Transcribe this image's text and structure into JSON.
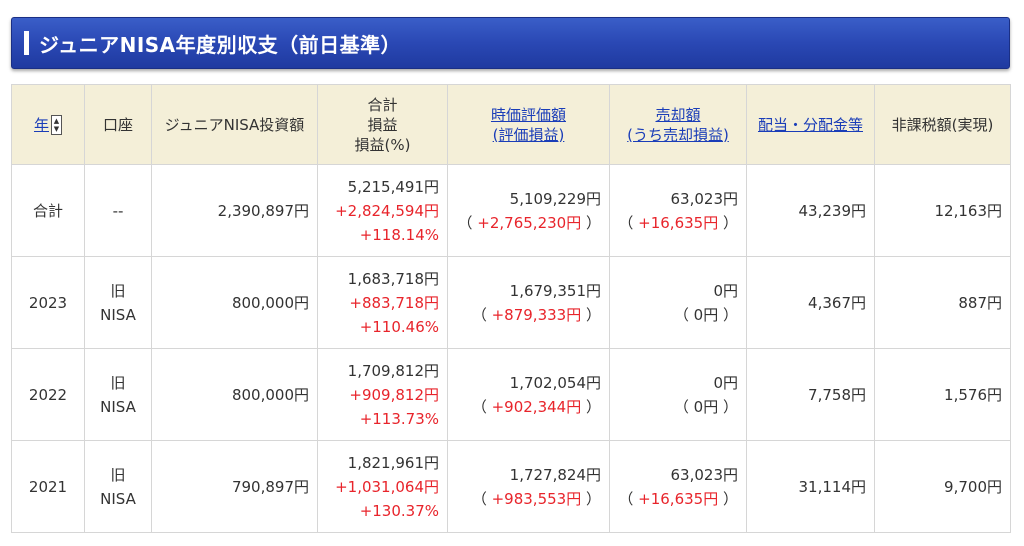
{
  "header": {
    "title": "ジュニアNISA年度別収支（前日基準）"
  },
  "columns": {
    "year": "年",
    "account": "口座",
    "invest": "ジュニアNISA投資額",
    "total_line1": "合計",
    "total_line2": "損益",
    "total_line3": "損益(%)",
    "valuation_line1": "時価評価額",
    "valuation_line2": "(評価損益)",
    "sale_line1": "売却額",
    "sale_line2": "(うち売却損益)",
    "dividend": "配当・分配金等",
    "taxfree": "非課税額(実現)"
  },
  "sort_icon": "up-down-arrows",
  "rows": [
    {
      "year": "合計",
      "account": "--",
      "invest": "2,390,897円",
      "total": "5,215,491円",
      "profit": "+2,824,594円",
      "pct": "+118.14%",
      "valuation": "5,109,229円",
      "eval_profit": "+2,765,230円",
      "sale": "63,023円",
      "sale_profit": "+16,635円",
      "dividend": "43,239円",
      "taxfree": "12,163円"
    },
    {
      "year": "2023",
      "account": "旧NISA",
      "invest": "800,000円",
      "total": "1,683,718円",
      "profit": "+883,718円",
      "pct": "+110.46%",
      "valuation": "1,679,351円",
      "eval_profit": "+879,333円",
      "sale": "0円",
      "sale_profit": "0円",
      "dividend": "4,367円",
      "taxfree": "887円"
    },
    {
      "year": "2022",
      "account": "旧NISA",
      "invest": "800,000円",
      "total": "1,709,812円",
      "profit": "+909,812円",
      "pct": "+113.73%",
      "valuation": "1,702,054円",
      "eval_profit": "+902,344円",
      "sale": "0円",
      "sale_profit": "0円",
      "dividend": "7,758円",
      "taxfree": "1,576円"
    },
    {
      "year": "2021",
      "account": "旧NISA",
      "invest": "790,897円",
      "total": "1,821,961円",
      "profit": "+1,031,064円",
      "pct": "+130.37%",
      "valuation": "1,727,824円",
      "eval_profit": "+983,553円",
      "sale": "63,023円",
      "sale_profit": "+16,635円",
      "dividend": "31,114円",
      "taxfree": "9,700円"
    }
  ],
  "accent": {
    "header_blue": "#2a48b4",
    "profit_red": "#e8242b",
    "link_blue": "#1a3db8",
    "header_cell_bg": "#f4efd8"
  }
}
